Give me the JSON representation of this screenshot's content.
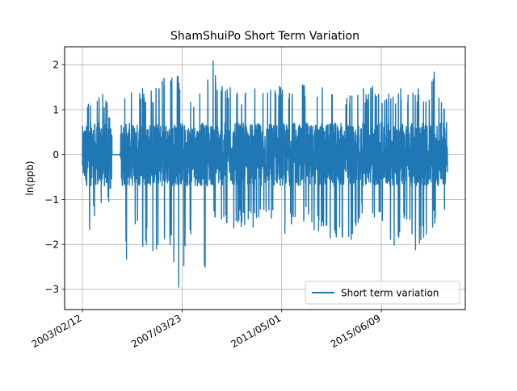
{
  "chart_data": {
    "type": "line",
    "title": "ShamShuiPo Short Term Variation",
    "xlabel": "",
    "ylabel": "ln(ppb)",
    "x_range": [
      "2003/02/12",
      "2018/03/01"
    ],
    "ylim": [
      -3.45,
      2.4
    ],
    "grid": true,
    "legend_position": "lower-right",
    "x_ticks": [
      "2003/02/12",
      "2007/03/23",
      "2011/05/01",
      "2015/06/09"
    ],
    "y_ticks": [
      -3,
      -2,
      -1,
      0,
      1,
      2
    ],
    "colors": {
      "series": "#1f77b4",
      "grid": "#b0b0b0",
      "axes": "#000000"
    },
    "series": [
      {
        "name": "Short term variation",
        "baseline": 0,
        "gaps": [
          [
            "2004/05/01",
            "2004/09/01"
          ]
        ],
        "envelope": [
          {
            "x": "2003/02/12",
            "lo": -0.9,
            "hi": 0.9
          },
          {
            "x": "2003/06/01",
            "lo": -1.7,
            "hi": 1.3
          },
          {
            "x": "2003/10/01",
            "lo": -1.2,
            "hi": 1.4
          },
          {
            "x": "2004/02/01",
            "lo": -1.4,
            "hi": 1.3
          },
          {
            "x": "2004/05/01",
            "lo": -0.8,
            "hi": 0.8
          },
          {
            "x": "2004/09/01",
            "lo": -1.0,
            "hi": 1.0
          },
          {
            "x": "2004/12/01",
            "lo": -2.5,
            "hi": 1.6
          },
          {
            "x": "2005/04/01",
            "lo": -1.7,
            "hi": 1.7
          },
          {
            "x": "2005/08/01",
            "lo": -2.1,
            "hi": 1.5
          },
          {
            "x": "2006/01/01",
            "lo": -2.2,
            "hi": 1.5
          },
          {
            "x": "2006/06/01",
            "lo": -2.2,
            "hi": 1.7
          },
          {
            "x": "2006/11/01",
            "lo": -2.3,
            "hi": 1.9
          },
          {
            "x": "2007/03/01",
            "lo": -3.2,
            "hi": 1.8
          },
          {
            "x": "2007/07/01",
            "lo": -2.0,
            "hi": 1.4
          },
          {
            "x": "2007/11/01",
            "lo": -2.2,
            "hi": 1.4
          },
          {
            "x": "2008/03/01",
            "lo": -2.7,
            "hi": 1.5
          },
          {
            "x": "2008/07/01",
            "lo": -1.6,
            "hi": 2.1
          },
          {
            "x": "2008/12/01",
            "lo": -1.5,
            "hi": 1.5
          },
          {
            "x": "2009/05/01",
            "lo": -1.7,
            "hi": 1.7
          },
          {
            "x": "2009/10/01",
            "lo": -1.6,
            "hi": 1.4
          },
          {
            "x": "2010/03/01",
            "lo": -1.7,
            "hi": 1.6
          },
          {
            "x": "2010/08/01",
            "lo": -1.3,
            "hi": 1.4
          },
          {
            "x": "2011/01/01",
            "lo": -1.6,
            "hi": 1.5
          },
          {
            "x": "2011/06/01",
            "lo": -2.1,
            "hi": 1.7
          },
          {
            "x": "2011/11/01",
            "lo": -1.5,
            "hi": 1.5
          },
          {
            "x": "2012/04/01",
            "lo": -1.5,
            "hi": 1.6
          },
          {
            "x": "2012/09/01",
            "lo": -1.7,
            "hi": 1.3
          },
          {
            "x": "2013/02/01",
            "lo": -1.8,
            "hi": 1.7
          },
          {
            "x": "2013/07/01",
            "lo": -1.9,
            "hi": 1.6
          },
          {
            "x": "2013/12/01",
            "lo": -2.3,
            "hi": 1.3
          },
          {
            "x": "2014/05/01",
            "lo": -1.7,
            "hi": 1.6
          },
          {
            "x": "2014/10/01",
            "lo": -1.3,
            "hi": 1.5
          },
          {
            "x": "2015/03/01",
            "lo": -1.4,
            "hi": 1.7
          },
          {
            "x": "2015/08/01",
            "lo": -1.8,
            "hi": 1.3
          },
          {
            "x": "2016/01/01",
            "lo": -2.3,
            "hi": 1.5
          },
          {
            "x": "2016/06/01",
            "lo": -1.6,
            "hi": 1.5
          },
          {
            "x": "2016/11/01",
            "lo": -2.2,
            "hi": 1.6
          },
          {
            "x": "2017/04/01",
            "lo": -1.8,
            "hi": 1.4
          },
          {
            "x": "2017/09/01",
            "lo": -1.6,
            "hi": 1.9
          },
          {
            "x": "2018/03/01",
            "lo": -1.1,
            "hi": 0.7
          }
        ]
      }
    ]
  }
}
